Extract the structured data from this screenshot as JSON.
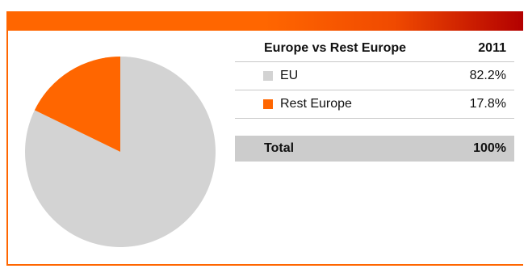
{
  "chart_data": {
    "type": "pie",
    "title": "Europe vs Rest Europe",
    "year_label": "2011",
    "slices": [
      {
        "label": "EU",
        "value": 82.2,
        "display": "82.2%",
        "color": "#d3d3d3"
      },
      {
        "label": "Rest Europe",
        "value": 17.8,
        "display": "17.8%",
        "color": "#ff6600"
      }
    ],
    "total_label": "Total",
    "total_value": "100%"
  },
  "colors": {
    "accent": "#ff6600",
    "accent_dark": "#b30000",
    "neutral": "#d3d3d3",
    "total_row": "#cccccc"
  }
}
